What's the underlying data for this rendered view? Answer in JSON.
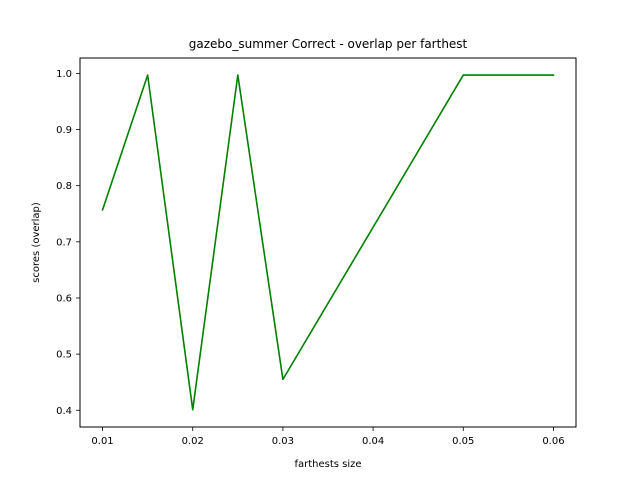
{
  "chart_data": {
    "type": "line",
    "title": "gazebo_summer Correct - overlap per farthest",
    "xlabel": "farthests size",
    "ylabel": "scores (overlap)",
    "x": [
      0.01,
      0.015,
      0.02,
      0.025,
      0.03,
      0.05,
      0.06
    ],
    "series": [
      {
        "values": [
          0.757,
          0.997,
          0.401,
          0.997,
          0.455,
          0.997,
          0.997
        ],
        "color": "#008000"
      }
    ],
    "xlim": [
      0.0075,
      0.0625
    ],
    "ylim": [
      0.3702,
      1.0274
    ],
    "xticks": [
      0.01,
      0.02,
      0.03,
      0.04,
      0.05,
      0.06
    ],
    "xtick_labels": [
      "0.01",
      "0.02",
      "0.03",
      "0.04",
      "0.05",
      "0.06"
    ],
    "yticks": [
      0.4,
      0.5,
      0.6,
      0.7,
      0.8,
      0.9,
      1.0
    ],
    "ytick_labels": [
      "0.4",
      "0.5",
      "0.6",
      "0.7",
      "0.8",
      "0.9",
      "1.0"
    ],
    "grid": false,
    "legend": false
  }
}
